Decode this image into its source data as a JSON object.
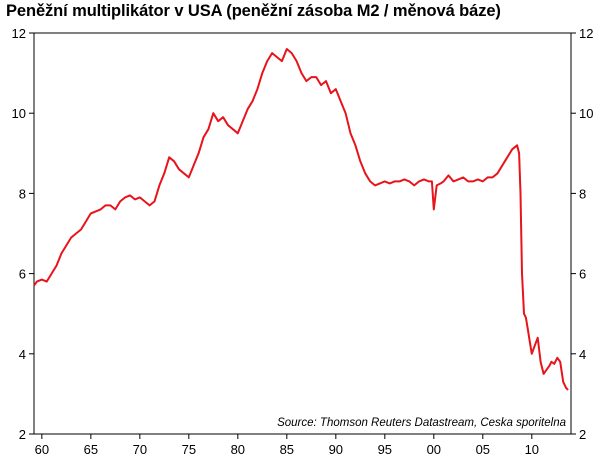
{
  "chart_data": {
    "type": "line",
    "title": "Peněžní multiplikátor v USA (peněžní zásoba M2 / měnová báze)",
    "source": "Source: Thomson Reuters Datastream, Ceska sporitelna",
    "xlabel": "",
    "ylabel": "",
    "xlim": [
      1959.2,
      2014.0
    ],
    "ylim": [
      2,
      12
    ],
    "x_ticks": [
      1960,
      1965,
      1970,
      1975,
      1980,
      1985,
      1990,
      1995,
      2000,
      2005,
      2010
    ],
    "x_tick_labels": [
      "60",
      "65",
      "70",
      "75",
      "80",
      "85",
      "90",
      "95",
      "00",
      "05",
      "10"
    ],
    "y_ticks": [
      2,
      4,
      6,
      8,
      10,
      12
    ],
    "y_tick_labels": [
      "2",
      "4",
      "6",
      "8",
      "10",
      "12"
    ],
    "grid": false,
    "legend": "none",
    "line_color": "#e8141b",
    "series": [
      {
        "x": [
          1959.2,
          1959.5,
          1960.0,
          1960.5,
          1961.0,
          1961.5,
          1962.0,
          1962.5,
          1963.0,
          1963.5,
          1964.0,
          1964.5,
          1965.0,
          1965.5,
          1966.0,
          1966.5,
          1967.0,
          1967.5,
          1968.0,
          1968.5,
          1969.0,
          1969.5,
          1970.0,
          1970.5,
          1971.0,
          1971.5,
          1972.0,
          1972.5,
          1973.0,
          1973.5,
          1974.0,
          1974.5,
          1975.0,
          1975.5,
          1976.0,
          1976.5,
          1977.0,
          1977.5,
          1978.0,
          1978.5,
          1979.0,
          1979.5,
          1980.0,
          1980.5,
          1981.0,
          1981.5,
          1982.0,
          1982.5,
          1983.0,
          1983.5,
          1984.0,
          1984.5,
          1985.0,
          1985.5,
          1986.0,
          1986.5,
          1987.0,
          1987.5,
          1988.0,
          1988.5,
          1989.0,
          1989.5,
          1990.0,
          1990.5,
          1991.0,
          1991.5,
          1992.0,
          1992.5,
          1993.0,
          1993.5,
          1994.0,
          1994.5,
          1995.0,
          1995.5,
          1996.0,
          1996.5,
          1997.0,
          1997.5,
          1998.0,
          1998.5,
          1999.0,
          1999.5,
          1999.8,
          2000.0,
          2000.3,
          2000.7,
          2001.0,
          2001.5,
          2002.0,
          2002.5,
          2003.0,
          2003.5,
          2004.0,
          2004.5,
          2005.0,
          2005.5,
          2006.0,
          2006.5,
          2007.0,
          2007.5,
          2008.0,
          2008.5,
          2008.7,
          2008.85,
          2009.0,
          2009.2,
          2009.4,
          2009.6,
          2009.8,
          2010.0,
          2010.3,
          2010.6,
          2010.9,
          2011.2,
          2011.5,
          2011.8,
          2012.0,
          2012.3,
          2012.6,
          2012.9,
          2013.2,
          2013.5,
          2013.7
        ],
        "y": [
          5.7,
          5.8,
          5.85,
          5.8,
          6.0,
          6.2,
          6.5,
          6.7,
          6.9,
          7.0,
          7.1,
          7.3,
          7.5,
          7.55,
          7.6,
          7.7,
          7.7,
          7.6,
          7.8,
          7.9,
          7.95,
          7.85,
          7.9,
          7.8,
          7.7,
          7.8,
          8.2,
          8.5,
          8.9,
          8.8,
          8.6,
          8.5,
          8.4,
          8.7,
          9.0,
          9.4,
          9.6,
          10.0,
          9.8,
          9.9,
          9.7,
          9.6,
          9.5,
          9.8,
          10.1,
          10.3,
          10.6,
          11.0,
          11.3,
          11.5,
          11.4,
          11.3,
          11.6,
          11.5,
          11.3,
          11.0,
          10.8,
          10.9,
          10.9,
          10.7,
          10.8,
          10.5,
          10.6,
          10.3,
          10.0,
          9.5,
          9.2,
          8.8,
          8.5,
          8.3,
          8.2,
          8.25,
          8.3,
          8.25,
          8.3,
          8.3,
          8.35,
          8.3,
          8.2,
          8.3,
          8.35,
          8.3,
          8.3,
          7.6,
          8.2,
          8.25,
          8.3,
          8.45,
          8.3,
          8.35,
          8.4,
          8.3,
          8.3,
          8.35,
          8.3,
          8.4,
          8.4,
          8.5,
          8.7,
          8.9,
          9.1,
          9.2,
          9.0,
          8.0,
          6.0,
          5.0,
          4.9,
          4.6,
          4.3,
          4.0,
          4.2,
          4.4,
          3.8,
          3.5,
          3.6,
          3.7,
          3.8,
          3.75,
          3.9,
          3.8,
          3.3,
          3.15,
          3.1
        ]
      }
    ]
  }
}
